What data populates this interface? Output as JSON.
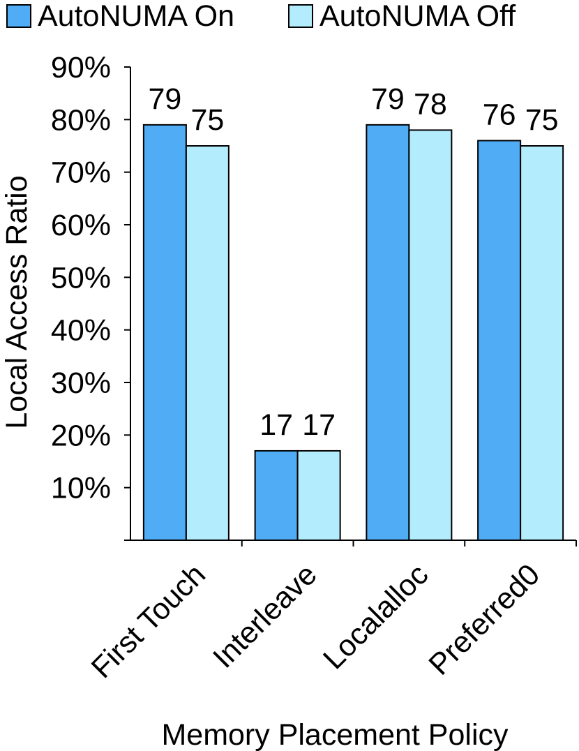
{
  "chart_data": {
    "type": "bar",
    "title": "",
    "xlabel": "Memory Placement Policy",
    "ylabel": "Local Access Ratio",
    "categories": [
      "First Touch",
      "Interleave",
      "Localalloc",
      "Preferred0"
    ],
    "series": [
      {
        "name": "AutoNUMA On",
        "values": [
          79,
          17,
          79,
          76
        ],
        "color": "#4facf5"
      },
      {
        "name": "AutoNUMA Off",
        "values": [
          75,
          17,
          78,
          75
        ],
        "color": "#b3ecfc"
      }
    ],
    "data_labels": [
      [
        "79",
        "17",
        "79",
        "76"
      ],
      [
        "75",
        "17",
        "78",
        "75"
      ]
    ],
    "ylim": [
      0,
      90
    ],
    "yticks": [
      10,
      20,
      30,
      40,
      50,
      60,
      70,
      80,
      90
    ],
    "ytick_labels": [
      "10%",
      "20%",
      "30%",
      "40%",
      "50%",
      "60%",
      "70%",
      "80%",
      "90%"
    ],
    "grid": false,
    "legend_position": "top",
    "bar_outline_color": "#000000"
  }
}
